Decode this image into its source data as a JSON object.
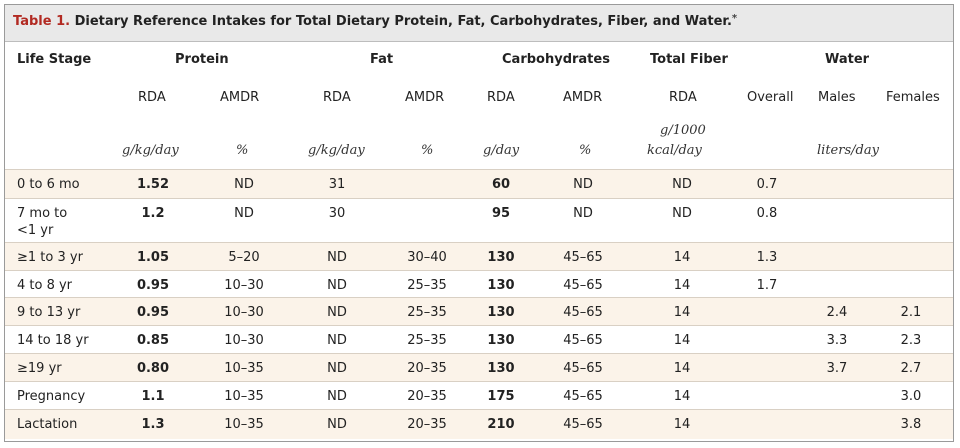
{
  "title": {
    "label": "Table 1.",
    "text": "Dietary Reference Intakes for Total Dietary Protein, Fat, Carbohydrates, Fiber, and Water.",
    "mark": "*"
  },
  "headers": {
    "life_stage": "Life Stage",
    "protein": "Protein",
    "fat": "Fat",
    "carbohydrates": "Carbohydrates",
    "total_fiber": "Total Fiber",
    "water": "Water",
    "sub": [
      "RDA",
      "AMDR",
      "RDA",
      "AMDR",
      "RDA",
      "AMDR",
      "RDA",
      "Overall",
      "Males",
      "Females"
    ],
    "units": {
      "protein_rda": "g/kg/day",
      "protein_amdr": "%",
      "fat_rda": "g/kg/day",
      "fat_amdr": "%",
      "carb_rda": "g/day",
      "carb_amdr": "%",
      "fiber_rda_line1": "g/1000",
      "fiber_rda_line2": "kcal/day",
      "water": "liters/day"
    }
  },
  "rows": [
    {
      "stage": "0 to 6 mo",
      "cells": [
        "1.52",
        "ND",
        "31",
        "",
        "60",
        "ND",
        "ND",
        "0.7",
        "",
        ""
      ]
    },
    {
      "stage": "7 mo to",
      "stage2": "<1 yr",
      "cells": [
        "1.2",
        "ND",
        "30",
        "",
        "95",
        "ND",
        "ND",
        "0.8",
        "",
        ""
      ]
    },
    {
      "stage": "≥1 to 3 yr",
      "cells": [
        "1.05",
        "5–20",
        "ND",
        "30–40",
        "130",
        "45–65",
        "14",
        "1.3",
        "",
        ""
      ]
    },
    {
      "stage": "4 to 8 yr",
      "cells": [
        "0.95",
        "10–30",
        "ND",
        "25–35",
        "130",
        "45–65",
        "14",
        "1.7",
        "",
        ""
      ]
    },
    {
      "stage": "9 to 13 yr",
      "cells": [
        "0.95",
        "10–30",
        "ND",
        "25–35",
        "130",
        "45–65",
        "14",
        "",
        "2.4",
        "2.1"
      ]
    },
    {
      "stage": "14 to 18 yr",
      "cells": [
        "0.85",
        "10–30",
        "ND",
        "25–35",
        "130",
        "45–65",
        "14",
        "",
        "3.3",
        "2.3"
      ]
    },
    {
      "stage": "≥19 yr",
      "cells": [
        "0.80",
        "10–35",
        "ND",
        "20–35",
        "130",
        "45–65",
        "14",
        "",
        "3.7",
        "2.7"
      ]
    },
    {
      "stage": "Pregnancy",
      "cells": [
        "1.1",
        "10–35",
        "ND",
        "20–35",
        "175",
        "45–65",
        "14",
        "",
        "",
        "3.0"
      ]
    },
    {
      "stage": "Lactation",
      "cells": [
        "1.3",
        "10–35",
        "ND",
        "20–35",
        "210",
        "45–65",
        "14",
        "",
        "",
        "3.8"
      ]
    }
  ]
}
